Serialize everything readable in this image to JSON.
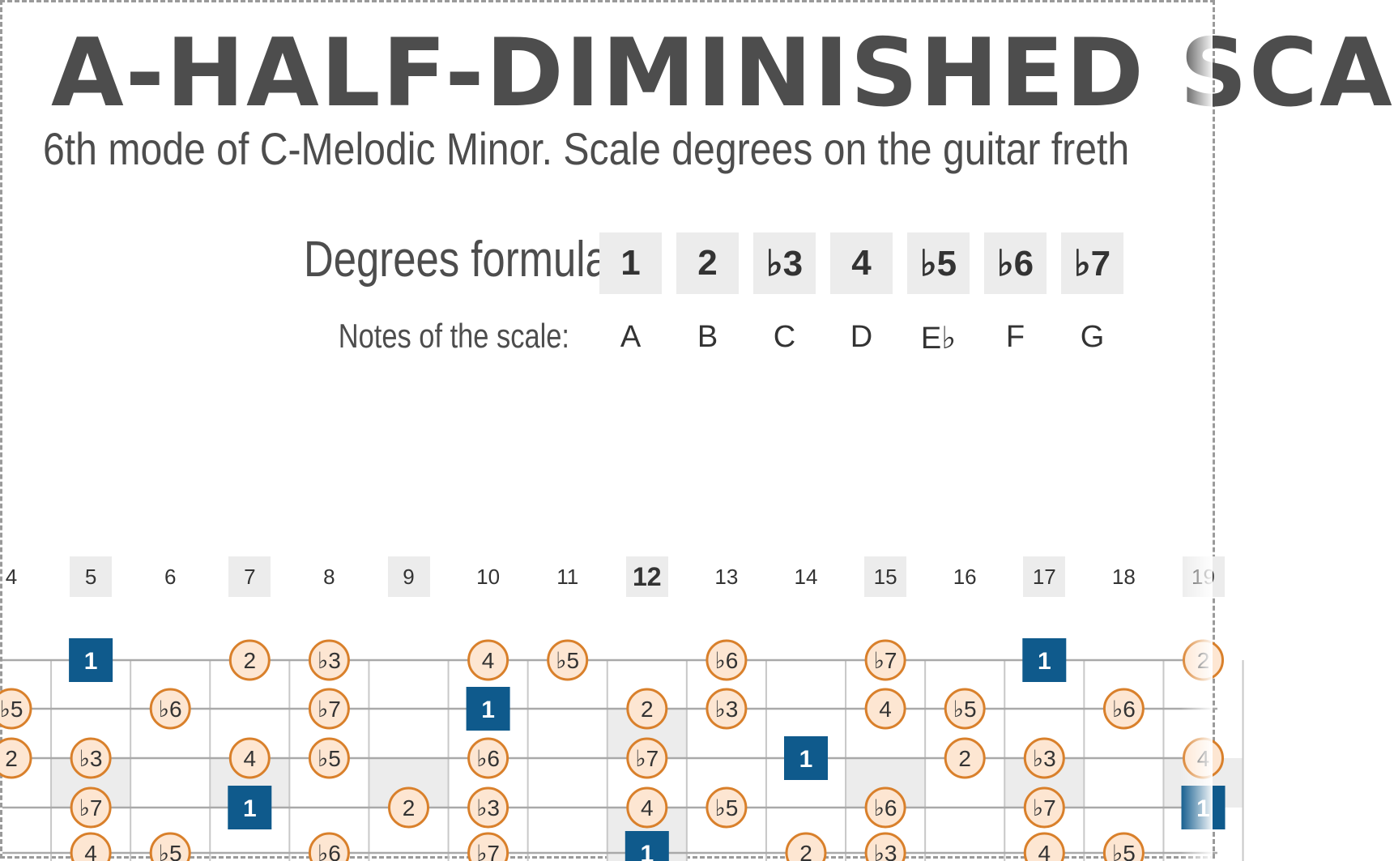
{
  "title": "A-HALF-DIMINISHED SCA",
  "subtitle": "6th mode of C-Melodic Minor. Scale degrees on the guitar freth",
  "formula": {
    "label": "Degrees formula:",
    "degrees": [
      "1",
      "2",
      "♭3",
      "4",
      "♭5",
      "♭6",
      "♭7"
    ]
  },
  "notes": {
    "label": "Notes of the scale:",
    "values": [
      "A",
      "B",
      "C",
      "D",
      "E♭",
      "F",
      "G"
    ]
  },
  "colors": {
    "root": "#0f5a8c",
    "dot_fill": "#fde6d2",
    "dot_stroke": "#d9802b",
    "text": "#4d4d4d",
    "shade": "#ececec"
  },
  "fretboard": {
    "fret_numbers": [
      "4",
      "5",
      "6",
      "7",
      "8",
      "9",
      "10",
      "11",
      "12",
      "13",
      "14",
      "15",
      "16",
      "17",
      "18",
      "19"
    ],
    "marker_frets": [
      "5",
      "7",
      "9",
      "12",
      "15",
      "17",
      "19"
    ],
    "strings": [
      {
        "name": "string-1",
        "positions": [
          {
            "fret": 5,
            "degree": "1"
          },
          {
            "fret": 7,
            "degree": "2"
          },
          {
            "fret": 8,
            "degree": "♭3"
          },
          {
            "fret": 10,
            "degree": "4"
          },
          {
            "fret": 11,
            "degree": "♭5"
          },
          {
            "fret": 13,
            "degree": "♭6"
          },
          {
            "fret": 15,
            "degree": "♭7"
          },
          {
            "fret": 17,
            "degree": "1"
          },
          {
            "fret": 19,
            "degree": "2"
          }
        ]
      },
      {
        "name": "string-2",
        "positions": [
          {
            "fret": 4,
            "degree": "♭5"
          },
          {
            "fret": 6,
            "degree": "♭6"
          },
          {
            "fret": 8,
            "degree": "♭7"
          },
          {
            "fret": 10,
            "degree": "1"
          },
          {
            "fret": 12,
            "degree": "2"
          },
          {
            "fret": 13,
            "degree": "♭3"
          },
          {
            "fret": 15,
            "degree": "4"
          },
          {
            "fret": 16,
            "degree": "♭5"
          },
          {
            "fret": 18,
            "degree": "♭6"
          }
        ]
      },
      {
        "name": "string-3",
        "positions": [
          {
            "fret": 4,
            "degree": "2"
          },
          {
            "fret": 5,
            "degree": "♭3"
          },
          {
            "fret": 7,
            "degree": "4"
          },
          {
            "fret": 8,
            "degree": "♭5"
          },
          {
            "fret": 10,
            "degree": "♭6"
          },
          {
            "fret": 12,
            "degree": "♭7"
          },
          {
            "fret": 14,
            "degree": "1"
          },
          {
            "fret": 16,
            "degree": "2"
          },
          {
            "fret": 17,
            "degree": "♭3"
          },
          {
            "fret": 19,
            "degree": "4"
          }
        ]
      },
      {
        "name": "string-4",
        "positions": [
          {
            "fret": 5,
            "degree": "♭7"
          },
          {
            "fret": 7,
            "degree": "1"
          },
          {
            "fret": 9,
            "degree": "2"
          },
          {
            "fret": 10,
            "degree": "♭3"
          },
          {
            "fret": 12,
            "degree": "4"
          },
          {
            "fret": 13,
            "degree": "♭5"
          },
          {
            "fret": 15,
            "degree": "♭6"
          },
          {
            "fret": 17,
            "degree": "♭7"
          },
          {
            "fret": 19,
            "degree": "1"
          }
        ]
      },
      {
        "name": "string-5",
        "positions": [
          {
            "fret": 5,
            "degree": "4"
          },
          {
            "fret": 6,
            "degree": "♭5"
          },
          {
            "fret": 8,
            "degree": "♭6"
          },
          {
            "fret": 10,
            "degree": "♭7"
          },
          {
            "fret": 12,
            "degree": "1"
          },
          {
            "fret": 14,
            "degree": "2"
          },
          {
            "fret": 15,
            "degree": "♭3"
          },
          {
            "fret": 17,
            "degree": "4"
          },
          {
            "fret": 18,
            "degree": "♭5"
          }
        ]
      }
    ]
  }
}
